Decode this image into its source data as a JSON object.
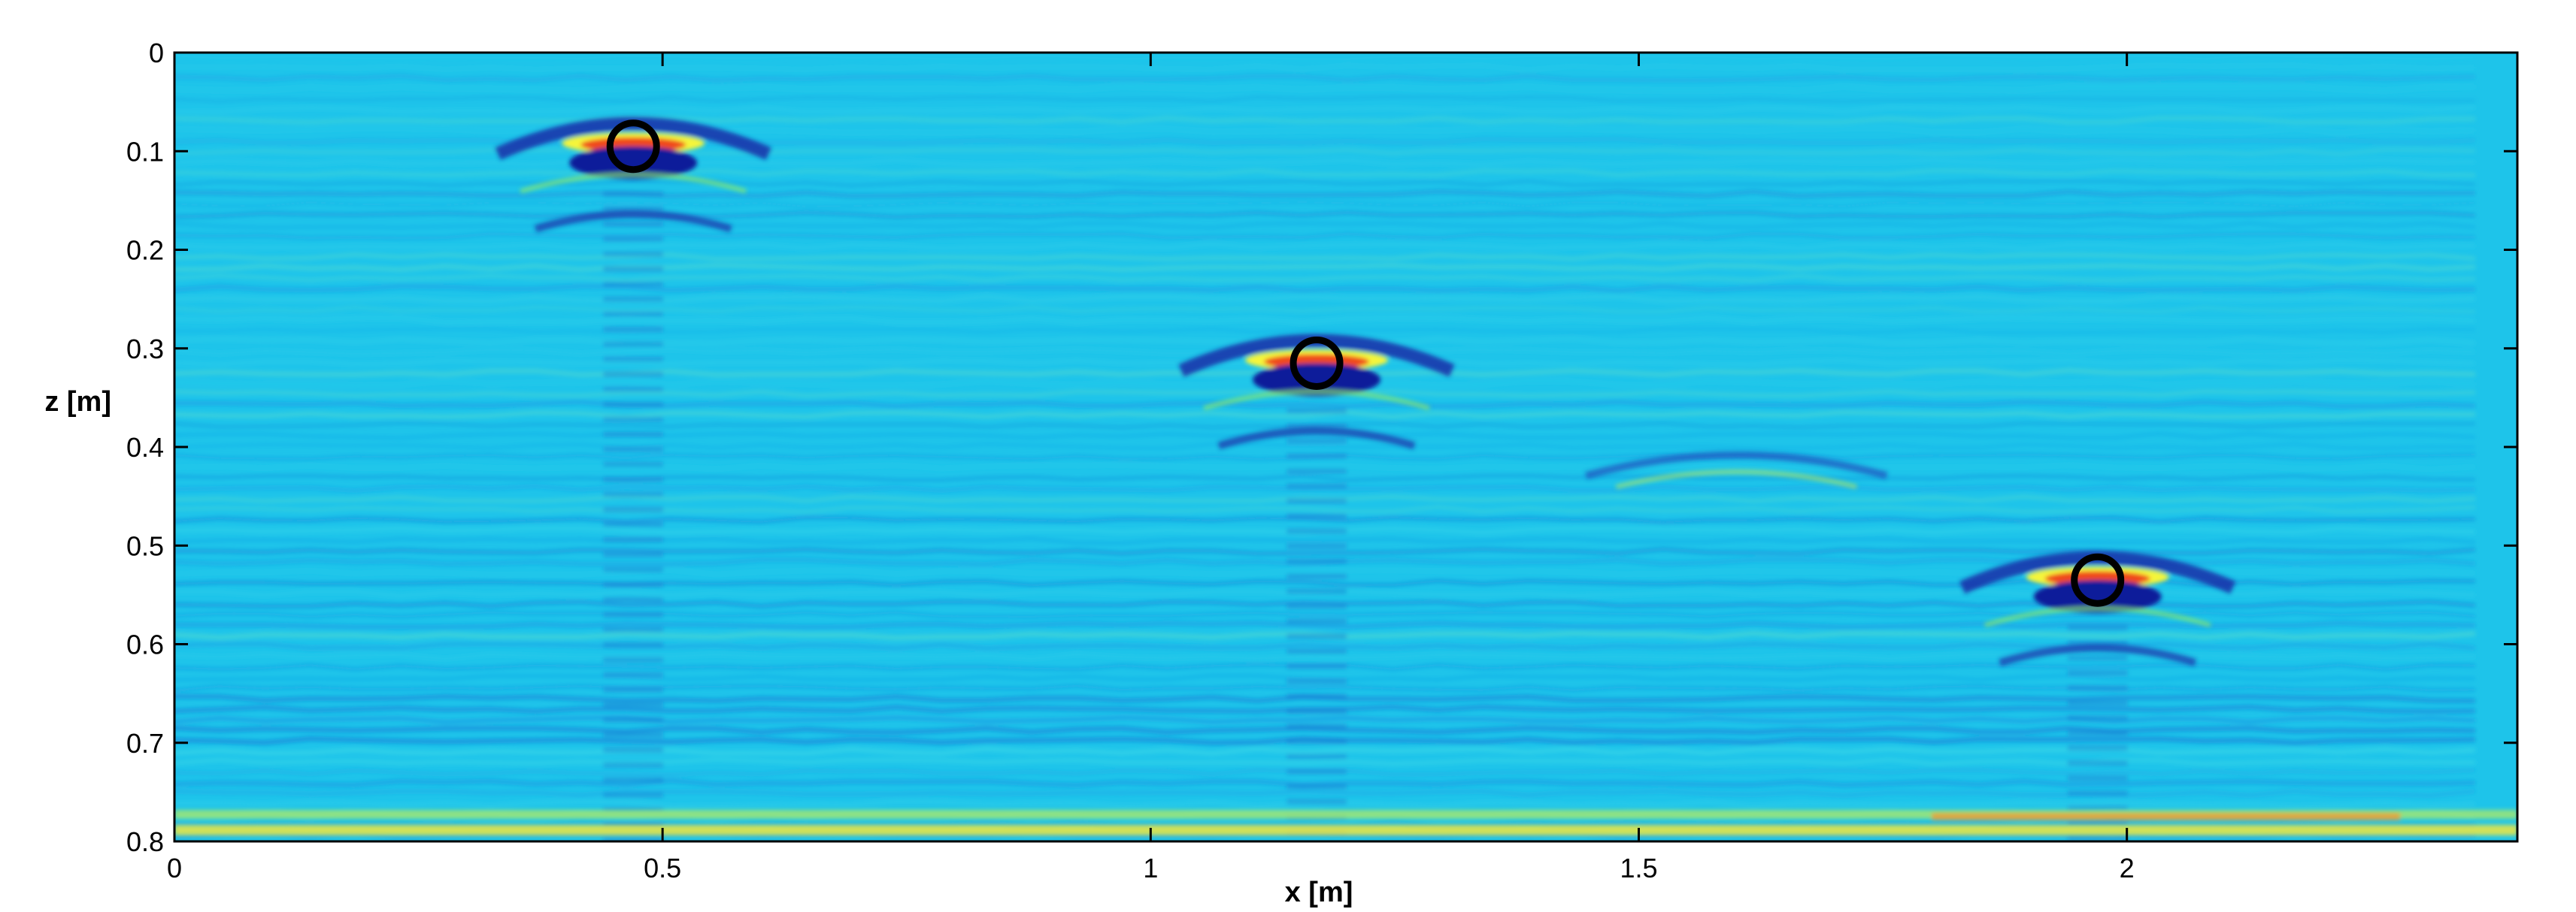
{
  "chart_data": {
    "type": "heatmap",
    "title": "",
    "xlabel": "x [m]",
    "ylabel": "z [m]",
    "xlim": [
      0,
      2.4
    ],
    "ylim": [
      0,
      0.8
    ],
    "y_reversed": true,
    "x_ticks": [
      0,
      0.5,
      1,
      1.5,
      2
    ],
    "x_tick_labels": [
      "0",
      "0.5",
      "1",
      "1.5",
      "2"
    ],
    "y_ticks": [
      0,
      0.1,
      0.2,
      0.3,
      0.4,
      0.5,
      0.6,
      0.7,
      0.8
    ],
    "y_tick_labels": [
      "0",
      "0.1",
      "0.2",
      "0.3",
      "0.4",
      "0.5",
      "0.6",
      "0.7",
      "0.8"
    ],
    "colormap": "jet",
    "background_color": "#1ec4ea",
    "marker_color": "#000000",
    "targets": [
      {
        "x": 0.47,
        "z": 0.095
      },
      {
        "x": 1.17,
        "z": 0.315
      },
      {
        "x": 1.97,
        "z": 0.535
      }
    ],
    "secondary_features": [
      {
        "x": 1.6,
        "z": 0.41
      }
    ]
  }
}
